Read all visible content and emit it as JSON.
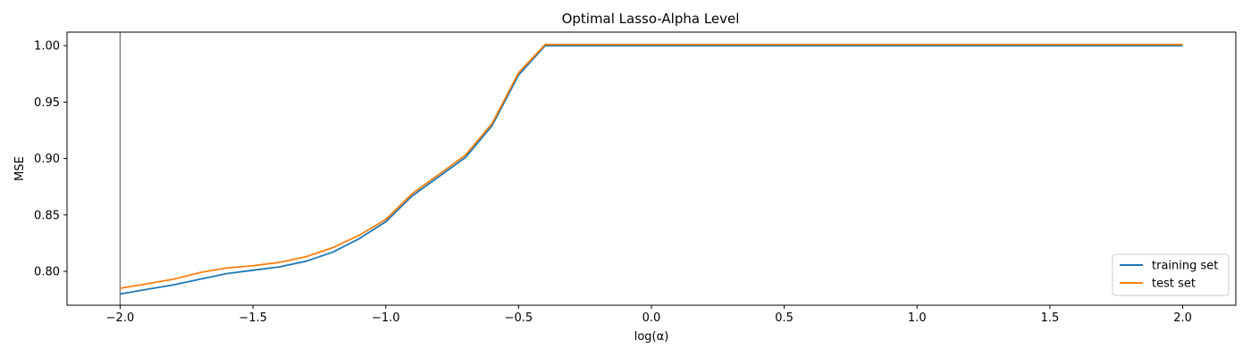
{
  "chart_data": {
    "type": "line",
    "title": "Optimal Lasso-Alpha Level",
    "xlabel": "log(α)",
    "ylabel": "MSE",
    "xlim": [
      -2.2,
      2.2
    ],
    "ylim": [
      0.77,
      1.012
    ],
    "xticks": [
      -2.0,
      -1.5,
      -1.0,
      -0.5,
      0.0,
      0.5,
      1.0,
      1.5,
      2.0
    ],
    "xtick_labels": [
      "−2.0",
      "−1.5",
      "−1.0",
      "−0.5",
      "0.0",
      "0.5",
      "1.0",
      "1.5",
      "2.0"
    ],
    "yticks": [
      0.8,
      0.85,
      0.9,
      0.95,
      1.0
    ],
    "ytick_labels": [
      "0.80",
      "0.85",
      "0.90",
      "0.95",
      "1.00"
    ],
    "grid": false,
    "legend_position": "lower-right",
    "vline": {
      "x": -2.0,
      "color": "#808080"
    },
    "series": [
      {
        "name": "training set",
        "color": "#1f77b4",
        "x": [
          -2.0,
          -1.9,
          -1.8,
          -1.7,
          -1.6,
          -1.5,
          -1.4,
          -1.3,
          -1.2,
          -1.1,
          -1.0,
          -0.9,
          -0.8,
          -0.7,
          -0.6,
          -0.5,
          -0.4,
          2.0
        ],
        "y": [
          0.78,
          0.784,
          0.788,
          0.793,
          0.798,
          0.801,
          0.804,
          0.809,
          0.817,
          0.829,
          0.844,
          0.867,
          0.884,
          0.901,
          0.929,
          0.974,
          1.0,
          1.0
        ]
      },
      {
        "name": "test set",
        "color": "#ff7f0e",
        "x": [
          -2.0,
          -1.9,
          -1.8,
          -1.7,
          -1.6,
          -1.5,
          -1.4,
          -1.3,
          -1.2,
          -1.1,
          -1.0,
          -0.9,
          -0.8,
          -0.7,
          -0.6,
          -0.5,
          -0.4,
          2.0
        ],
        "y": [
          0.785,
          0.789,
          0.793,
          0.799,
          0.803,
          0.805,
          0.808,
          0.813,
          0.821,
          0.832,
          0.846,
          0.869,
          0.886,
          0.903,
          0.931,
          0.976,
          1.001,
          1.001
        ]
      }
    ]
  }
}
